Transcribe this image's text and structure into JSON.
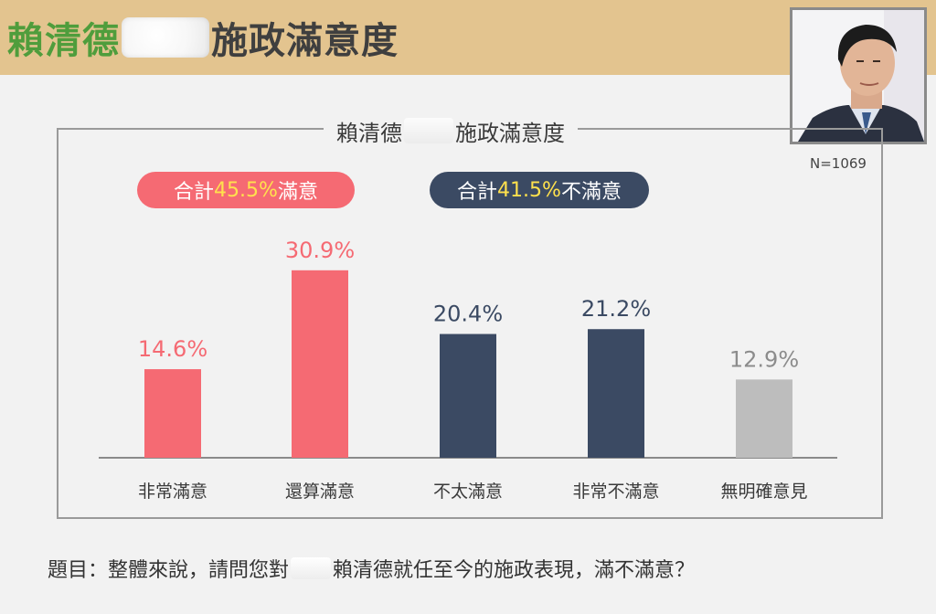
{
  "header": {
    "name": "賴清德",
    "title_rest": "施政滿意度"
  },
  "sample_size": "N=1069",
  "summary": {
    "satisfied": {
      "prefix": "合計",
      "value": "45.5%",
      "suffix": "滿意"
    },
    "dissatisfied": {
      "prefix": "合計",
      "value": "41.5%",
      "suffix": "不滿意"
    }
  },
  "question": {
    "prefix": "題目：整體來說，請問您對",
    "suffix": "賴清德就任至今的施政表現，滿不滿意？"
  },
  "colors": {
    "satisfied": "#f56a73",
    "dissatisfied": "#3b4a63",
    "no_opinion": "#bdbdbd",
    "header_band": "#e3c48f",
    "highlight": "#ffe14d"
  },
  "chart_data": {
    "type": "bar",
    "title": "賴清德施政滿意度",
    "categories": [
      "非常滿意",
      "還算滿意",
      "不太滿意",
      "非常不滿意",
      "無明確意見"
    ],
    "values": [
      14.6,
      30.9,
      20.4,
      21.2,
      12.9
    ],
    "value_labels": [
      "14.6%",
      "30.9%",
      "20.4%",
      "21.2%",
      "12.9%"
    ],
    "bar_colors": [
      "#f56a73",
      "#f56a73",
      "#3b4a63",
      "#3b4a63",
      "#bdbdbd"
    ],
    "label_colors": [
      "#f56a73",
      "#f56a73",
      "#3b4a63",
      "#3b4a63",
      "#8c8c8c"
    ],
    "unit": "%",
    "ylim": [
      0,
      35
    ],
    "grid": false,
    "legend": "none"
  }
}
